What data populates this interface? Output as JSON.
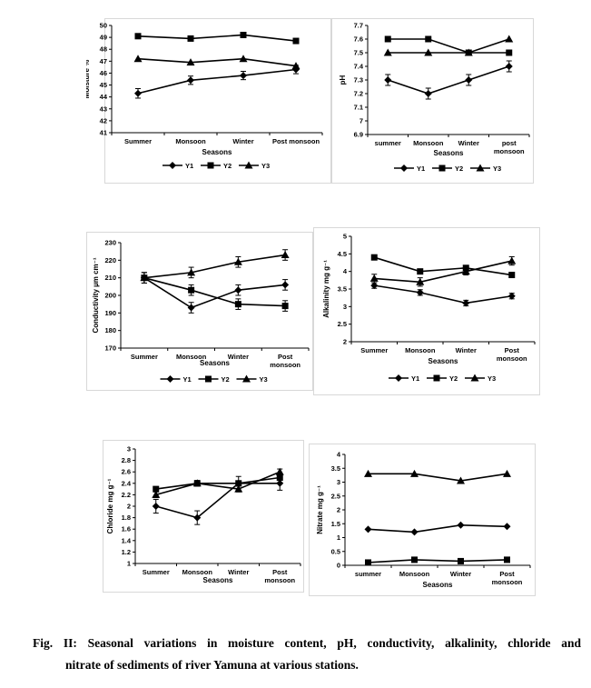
{
  "caption": {
    "line1": "Fig. II: Seasonal variations in moisture content, pH, conductivity, alkalinity, chloride and",
    "line2": "nitrate of sediments of river Yamuna at  various stations."
  },
  "chart_data": [
    {
      "type": "line",
      "ylabel": "Moisture %",
      "xlabel": "Seasons",
      "categories": [
        "Summer",
        "Monsoon",
        "Winter",
        "Post monsoon"
      ],
      "ylim": [
        41,
        50
      ],
      "yticks": [
        "41",
        "42",
        "43",
        "44",
        "45",
        "46",
        "47",
        "48",
        "49",
        "50"
      ],
      "series": [
        {
          "name": "Y1",
          "marker": "diamond",
          "values": [
            44.3,
            45.4,
            45.8,
            46.3
          ],
          "err": [
            0.4,
            0.35,
            0.35,
            0.35
          ]
        },
        {
          "name": "Y2",
          "marker": "square",
          "values": [
            49.1,
            48.9,
            49.2,
            48.7
          ],
          "err": [
            0,
            0,
            0,
            0
          ]
        },
        {
          "name": "Y3",
          "marker": "triangle",
          "values": [
            47.2,
            46.9,
            47.2,
            46.6
          ],
          "err": [
            0,
            0,
            0,
            0
          ]
        }
      ],
      "legend": "bottom"
    },
    {
      "type": "line",
      "ylabel": "pH",
      "xlabel": "Seasons",
      "categories": [
        "summer",
        "Monsoon",
        "Winter",
        "post monsoon"
      ],
      "ylim": [
        6.9,
        7.7
      ],
      "yticks": [
        "6.9",
        "7",
        "7.1",
        "7.2",
        "7.3",
        "7.4",
        "7.5",
        "7.6",
        "7.7"
      ],
      "series": [
        {
          "name": "Y1",
          "marker": "diamond",
          "values": [
            7.3,
            7.2,
            7.3,
            7.4
          ],
          "err": [
            0.04,
            0.04,
            0.04,
            0.04
          ]
        },
        {
          "name": "Y2",
          "marker": "square",
          "values": [
            7.6,
            7.6,
            7.5,
            7.5
          ],
          "err": [
            0.02,
            0.02,
            0.02,
            0.02
          ]
        },
        {
          "name": "Y3",
          "marker": "triangle",
          "values": [
            7.5,
            7.5,
            7.5,
            7.6
          ],
          "err": [
            0,
            0,
            0,
            0
          ]
        }
      ],
      "legend": "bottom"
    },
    {
      "type": "line",
      "ylabel": "Conductivity µm cm⁻¹",
      "xlabel": "Seasons",
      "categories": [
        "Summer",
        "Monsoon",
        "Winter",
        "Post monsoon"
      ],
      "ylim": [
        170,
        230
      ],
      "yticks": [
        "170",
        "180",
        "190",
        "200",
        "210",
        "220",
        "230"
      ],
      "series": [
        {
          "name": "Y1",
          "marker": "diamond",
          "values": [
            210,
            193,
            203,
            206
          ],
          "err": [
            3,
            3,
            3,
            3
          ]
        },
        {
          "name": "Y2",
          "marker": "square",
          "values": [
            210,
            203,
            195,
            194
          ],
          "err": [
            3,
            3,
            3,
            3
          ]
        },
        {
          "name": "Y3",
          "marker": "triangle",
          "values": [
            210,
            213,
            219,
            223
          ],
          "err": [
            3,
            3,
            3,
            3
          ]
        }
      ],
      "legend": "bottom"
    },
    {
      "type": "line",
      "ylabel": "Alkalinity mg g⁻¹",
      "xlabel": "Seasons",
      "categories": [
        "Summer",
        "Monsoon",
        "Winter",
        "Post monsoon"
      ],
      "ylim": [
        2,
        5
      ],
      "yticks": [
        "2",
        "2.5",
        "3",
        "3.5",
        "4",
        "4.5",
        "5"
      ],
      "series": [
        {
          "name": "Y1",
          "marker": "diamond",
          "values": [
            3.6,
            3.4,
            3.1,
            3.3
          ],
          "err": [
            0.08,
            0.08,
            0.08,
            0.08
          ]
        },
        {
          "name": "Y2",
          "marker": "square",
          "values": [
            4.4,
            4.0,
            4.1,
            3.9
          ],
          "err": [
            0.05,
            0.05,
            0.05,
            0.05
          ]
        },
        {
          "name": "Y3",
          "marker": "triangle",
          "values": [
            3.8,
            3.7,
            4.0,
            4.3
          ],
          "err": [
            0.12,
            0.12,
            0.1,
            0.12
          ]
        }
      ],
      "legend": "bottom"
    },
    {
      "type": "line",
      "ylabel": "Chloride mg g⁻¹",
      "xlabel": "Seasons",
      "categories": [
        "Summer",
        "Monsoon",
        "Winter",
        "Post monsoon"
      ],
      "ylim": [
        1,
        3
      ],
      "yticks": [
        "1",
        "1.2",
        "1.4",
        "1.6",
        "1.8",
        "2",
        "2.2",
        "2.4",
        "2.6",
        "2.8",
        "3"
      ],
      "series": [
        {
          "name": "Y1",
          "marker": "diamond",
          "values": [
            2.0,
            1.8,
            2.4,
            2.4
          ],
          "err": [
            0.12,
            0.12,
            0.12,
            0.12
          ]
        },
        {
          "name": "Y2",
          "marker": "square",
          "values": [
            2.3,
            2.4,
            2.4,
            2.5
          ],
          "err": [
            0.04,
            0.04,
            0.04,
            0.04
          ]
        },
        {
          "name": "Y3",
          "marker": "triangle",
          "values": [
            2.2,
            2.4,
            2.3,
            2.6
          ],
          "err": [
            0.05,
            0.05,
            0.05,
            0.05
          ]
        }
      ],
      "legend": "none"
    },
    {
      "type": "line",
      "ylabel": "Nitrate mg g⁻¹",
      "xlabel": "Seasons",
      "categories": [
        "summer",
        "Monsoon",
        "Winter",
        "Post monsoon"
      ],
      "ylim": [
        0,
        4
      ],
      "yticks": [
        "0",
        "0.5",
        "1",
        "1.5",
        "2",
        "2.5",
        "3",
        "3.5",
        "4"
      ],
      "series": [
        {
          "name": "Y1",
          "marker": "diamond",
          "values": [
            1.3,
            1.2,
            1.45,
            1.4
          ],
          "err": [
            0,
            0,
            0,
            0
          ]
        },
        {
          "name": "Y2",
          "marker": "square",
          "values": [
            0.1,
            0.2,
            0.15,
            0.2
          ],
          "err": [
            0,
            0,
            0,
            0
          ]
        },
        {
          "name": "Y3",
          "marker": "triangle",
          "values": [
            3.3,
            3.3,
            3.05,
            3.3
          ],
          "err": [
            0,
            0,
            0,
            0
          ]
        }
      ],
      "legend": "none"
    }
  ]
}
